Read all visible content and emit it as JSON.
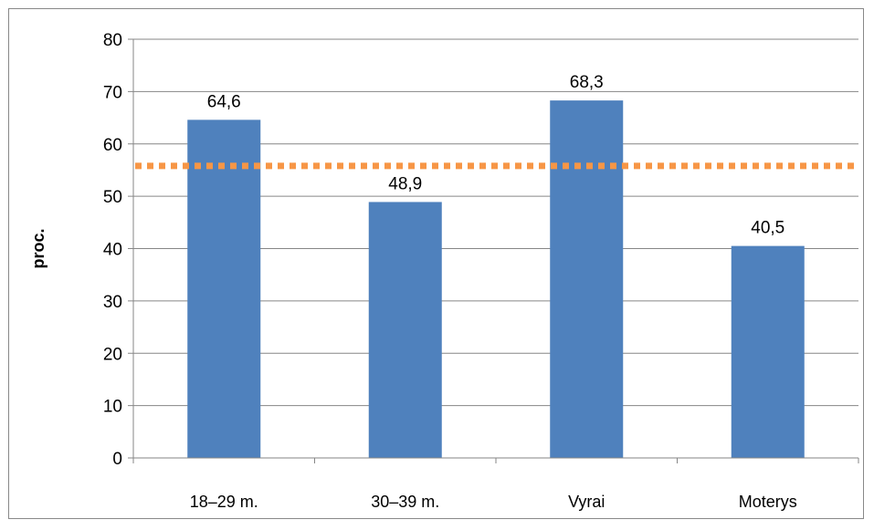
{
  "chart_data": {
    "type": "bar",
    "categories": [
      "18–29 m.",
      "30–39 m.",
      "Vyrai",
      "Moterys"
    ],
    "series": [
      {
        "values": [
          64.6,
          48.9,
          68.3,
          40.5
        ],
        "color": "#4f81bd"
      }
    ],
    "data_labels": [
      "64,6",
      "48,9",
      "68,3",
      "40,5"
    ],
    "reference_line": {
      "value": 55.8,
      "color": "#f79646",
      "style": "dotted"
    },
    "ylabel": "proc.",
    "xlabel": "",
    "ylim": [
      0,
      80
    ],
    "yticks": [
      0,
      10,
      20,
      30,
      40,
      50,
      60,
      70,
      80
    ],
    "grid": true,
    "legend": "none"
  }
}
